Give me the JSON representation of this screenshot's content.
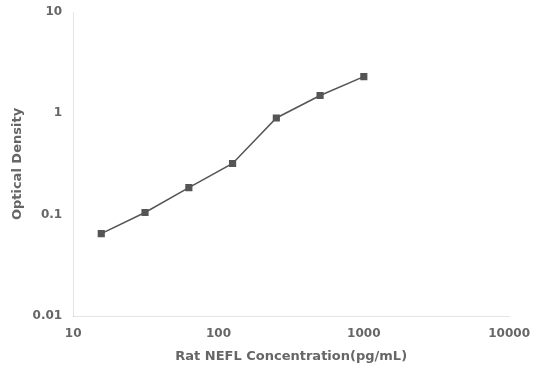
{
  "chart_data": {
    "type": "line",
    "x": [
      15.6,
      31.2,
      62.5,
      125,
      250,
      500,
      1000
    ],
    "values": [
      0.065,
      0.105,
      0.185,
      0.32,
      0.9,
      1.5,
      2.3
    ],
    "color": "#555555",
    "marker": "square",
    "xlabel": "Rat NEFL Concentration(pg/mL)",
    "ylabel": "Optical Density",
    "log": true,
    "xlim": [
      10,
      10000
    ],
    "ylim": [
      0.01,
      10
    ],
    "xticks": [
      10,
      100,
      1000,
      10000
    ],
    "yticks": [
      0.01,
      0.1,
      1,
      10
    ],
    "grid": false
  }
}
